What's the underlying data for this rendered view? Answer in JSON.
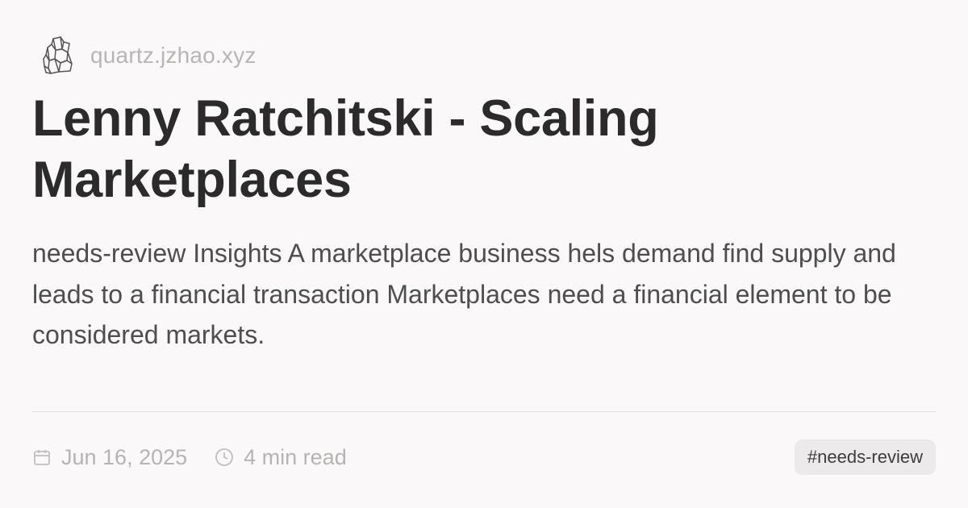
{
  "site": {
    "icon": "crystal-logo-icon",
    "url": "quartz.jzhao.xyz"
  },
  "article": {
    "title": "Lenny Ratchitski - Scaling Marketplaces",
    "description": "needs-review Insights A marketplace business hels demand find supply and leads to a financial transaction Marketplaces need a financial element to be considered markets."
  },
  "footer": {
    "date_icon": "calendar-icon",
    "date": "Jun 16, 2025",
    "read_icon": "clock-icon",
    "read_time": "4 min read",
    "tag": "#needs-review"
  },
  "colors": {
    "background": "#faf8f8",
    "title": "#2b2b2b",
    "description": "#4e4e4e",
    "muted": "#b7b3b3",
    "tag_background": "#eceaea"
  }
}
